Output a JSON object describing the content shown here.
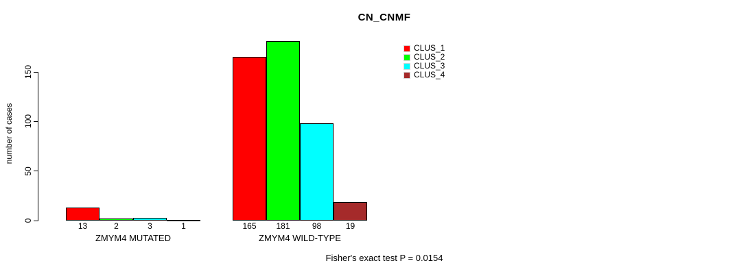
{
  "chart_data": {
    "type": "bar",
    "title": "CN_CNMF",
    "ylabel": "number of cases",
    "xlabel": "",
    "ylim": [
      0,
      150
    ],
    "yticks": [
      0,
      50,
      100,
      150
    ],
    "grid": false,
    "legend_position": "top-right",
    "categories": [
      "ZMYM4 MUTATED",
      "ZMYM4 WILD-TYPE"
    ],
    "series": [
      {
        "name": "CLUS_1",
        "color": "#ff0000",
        "values": [
          13,
          165
        ]
      },
      {
        "name": "CLUS_2",
        "color": "#00ff00",
        "values": [
          2,
          181
        ]
      },
      {
        "name": "CLUS_3",
        "color": "#00ffff",
        "values": [
          3,
          98
        ]
      },
      {
        "name": "CLUS_4",
        "color": "#a52a2a",
        "values": [
          1,
          19
        ]
      }
    ],
    "bar_value_labels": true,
    "annotation": "Fisher's exact test P = 0.0154",
    "bar_border_color": "#000000",
    "background_color": "#ffffff"
  }
}
